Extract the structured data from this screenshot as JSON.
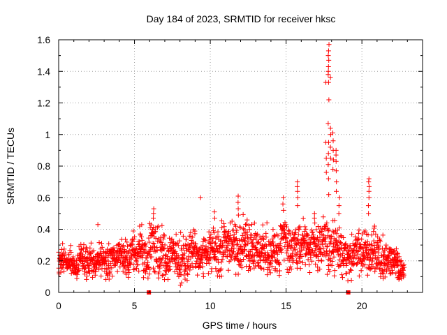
{
  "chart_data": {
    "type": "scatter",
    "title": "Day 184 of 2023, SRMTID for receiver hksc",
    "xlabel": "GPS time / hours",
    "ylabel": "SRMTID / TECUs",
    "xlim": [
      0,
      24
    ],
    "ylim": [
      0,
      1.6
    ],
    "xticks": [
      "0",
      "5",
      "10",
      "15",
      "20"
    ],
    "yticks": [
      "0",
      "0.2",
      "0.4",
      "0.6",
      "0.8",
      "1",
      "1.2",
      "1.4",
      "1.6"
    ],
    "grid": true,
    "marker": "+",
    "color": "#ff0000",
    "baseline_markers_x": [
      5.95,
      19.1
    ],
    "spikes": [
      {
        "x": 17.8,
        "values": [
          1.57,
          1.53,
          1.5,
          1.47,
          1.43,
          1.4,
          1.38,
          1.33,
          1.22,
          1.07,
          0.95,
          0.88,
          0.81,
          0.72,
          0.62
        ]
      },
      {
        "x": 17.65,
        "values": [
          1.33,
          0.95,
          0.85,
          0.76
        ]
      },
      {
        "x": 17.95,
        "values": [
          1.36,
          1.04,
          1.0,
          0.92,
          0.85
        ]
      },
      {
        "x": 18.1,
        "values": [
          1.01,
          0.96,
          0.9,
          0.84,
          0.78
        ]
      },
      {
        "x": 18.3,
        "values": [
          0.9,
          0.87,
          0.83,
          0.77,
          0.7,
          0.64
        ]
      },
      {
        "x": 18.5,
        "values": [
          0.6,
          0.55,
          0.5
        ]
      },
      {
        "x": 20.45,
        "values": [
          0.72,
          0.7,
          0.67,
          0.64,
          0.6,
          0.55,
          0.5
        ]
      },
      {
        "x": 15.75,
        "values": [
          0.7,
          0.67,
          0.64,
          0.6,
          0.55
        ]
      },
      {
        "x": 14.8,
        "values": [
          0.6,
          0.56,
          0.52
        ]
      },
      {
        "x": 11.85,
        "values": [
          0.61,
          0.57,
          0.53,
          0.49
        ]
      },
      {
        "x": 9.35,
        "values": [
          0.6
        ]
      },
      {
        "x": 10.3,
        "values": [
          0.51,
          0.47
        ]
      },
      {
        "x": 6.25,
        "values": [
          0.53,
          0.5,
          0.47
        ]
      },
      {
        "x": 2.6,
        "values": [
          0.43
        ]
      },
      {
        "x": 16.9,
        "values": [
          0.5,
          0.47,
          0.44
        ]
      }
    ],
    "background_envelope": [
      {
        "x": 0,
        "lo": 0.11,
        "hi": 0.3
      },
      {
        "x": 1,
        "lo": 0.1,
        "hi": 0.28
      },
      {
        "x": 2,
        "lo": 0.09,
        "hi": 0.3
      },
      {
        "x": 3,
        "lo": 0.09,
        "hi": 0.32
      },
      {
        "x": 4,
        "lo": 0.1,
        "hi": 0.34
      },
      {
        "x": 5,
        "lo": 0.11,
        "hi": 0.38
      },
      {
        "x": 6,
        "lo": 0.1,
        "hi": 0.44
      },
      {
        "x": 7,
        "lo": 0.09,
        "hi": 0.4
      },
      {
        "x": 8,
        "lo": 0.05,
        "hi": 0.36
      },
      {
        "x": 9,
        "lo": 0.08,
        "hi": 0.38
      },
      {
        "x": 10,
        "lo": 0.1,
        "hi": 0.4
      },
      {
        "x": 11,
        "lo": 0.12,
        "hi": 0.45
      },
      {
        "x": 12,
        "lo": 0.13,
        "hi": 0.48
      },
      {
        "x": 13,
        "lo": 0.12,
        "hi": 0.42
      },
      {
        "x": 14,
        "lo": 0.12,
        "hi": 0.42
      },
      {
        "x": 15,
        "lo": 0.12,
        "hi": 0.45
      },
      {
        "x": 16,
        "lo": 0.14,
        "hi": 0.45
      },
      {
        "x": 17,
        "lo": 0.14,
        "hi": 0.42
      },
      {
        "x": 18,
        "lo": 0.12,
        "hi": 0.5
      },
      {
        "x": 19,
        "lo": 0.08,
        "hi": 0.34
      },
      {
        "x": 20,
        "lo": 0.1,
        "hi": 0.4
      },
      {
        "x": 21,
        "lo": 0.09,
        "hi": 0.4
      },
      {
        "x": 22,
        "lo": 0.08,
        "hi": 0.3
      },
      {
        "x": 22.8,
        "lo": 0.08,
        "hi": 0.22
      }
    ],
    "data_end_x": 22.8
  }
}
